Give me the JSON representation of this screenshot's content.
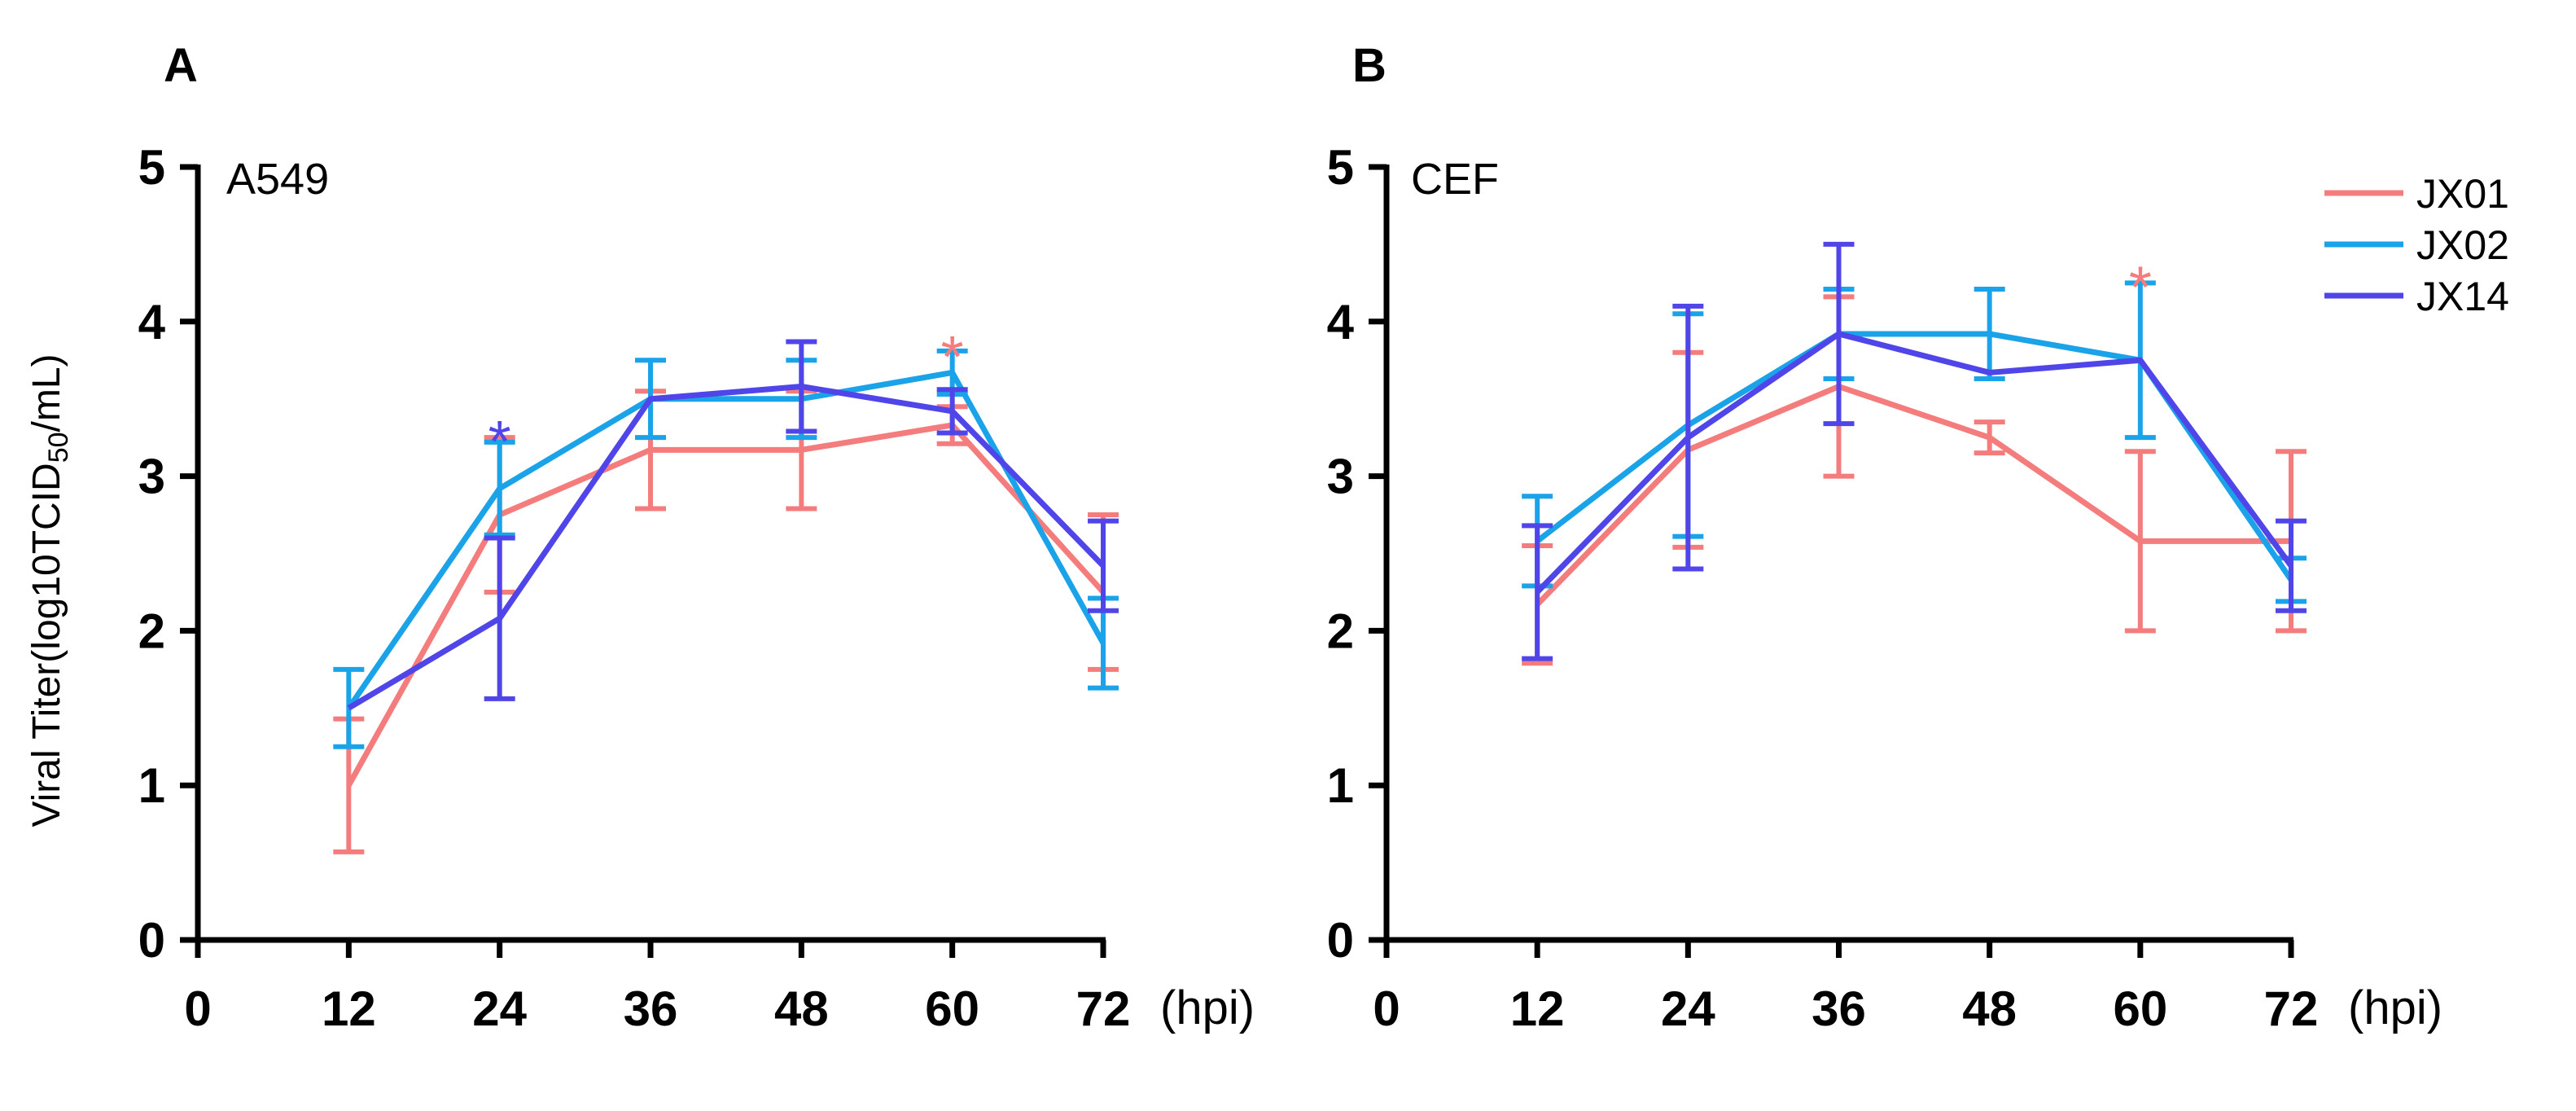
{
  "y_label": {
    "main": "Viral Titer(log10TCID",
    "sub": "50",
    "tail": "/mL)"
  },
  "legend": [
    "JX01",
    "JX02",
    "JX14"
  ],
  "colors": {
    "JX01": "#f47c7c",
    "JX02": "#1aa3e8",
    "JX14": "#5045e8"
  },
  "chart_data": [
    {
      "type": "line",
      "panel_label": "A",
      "cell_label": "A549",
      "x_unit": "(hpi)",
      "x": [
        12,
        24,
        36,
        48,
        60,
        72
      ],
      "x_ticks": [
        0,
        12,
        24,
        36,
        48,
        60,
        72
      ],
      "y_ticks": [
        0,
        1,
        2,
        3,
        4,
        5
      ],
      "xlim": [
        0,
        72
      ],
      "ylim": [
        0,
        5
      ],
      "series": [
        {
          "name": "JX01",
          "values": [
            1.0,
            2.75,
            3.17,
            3.17,
            3.33,
            2.25
          ],
          "errors": [
            0.43,
            0.5,
            0.38,
            0.38,
            0.12,
            0.5
          ]
        },
        {
          "name": "JX02",
          "values": [
            1.5,
            2.92,
            3.5,
            3.5,
            3.67,
            1.92
          ],
          "errors": [
            0.25,
            0.3,
            0.25,
            0.25,
            0.14,
            0.29
          ]
        },
        {
          "name": "JX14",
          "values": [
            1.5,
            2.08,
            3.5,
            3.58,
            3.42,
            2.42
          ],
          "errors": [
            0.0,
            0.52,
            0.0,
            0.29,
            0.14,
            0.29
          ]
        }
      ],
      "annotations": [
        {
          "x": 24,
          "y": 3.25,
          "text": "*",
          "series": "JX14"
        },
        {
          "x": 60,
          "y": 3.8,
          "text": "*",
          "series": "JX01"
        }
      ]
    },
    {
      "type": "line",
      "panel_label": "B",
      "cell_label": "CEF",
      "x_unit": "(hpi)",
      "x": [
        12,
        24,
        36,
        48,
        60,
        72
      ],
      "x_ticks": [
        0,
        12,
        24,
        36,
        48,
        60,
        72
      ],
      "y_ticks": [
        0,
        1,
        2,
        3,
        4,
        5
      ],
      "xlim": [
        0,
        72
      ],
      "ylim": [
        0,
        5
      ],
      "series": [
        {
          "name": "JX01",
          "values": [
            2.17,
            3.17,
            3.58,
            3.25,
            2.58,
            2.58
          ],
          "errors": [
            0.38,
            0.63,
            0.58,
            0.1,
            0.58,
            0.58
          ]
        },
        {
          "name": "JX02",
          "values": [
            2.58,
            3.33,
            3.92,
            3.92,
            3.75,
            2.33
          ],
          "errors": [
            0.29,
            0.72,
            0.29,
            0.29,
            0.5,
            0.14
          ]
        },
        {
          "name": "JX14",
          "values": [
            2.25,
            3.25,
            3.92,
            3.67,
            3.75,
            2.42
          ],
          "errors": [
            0.43,
            0.85,
            0.58,
            0.0,
            0.0,
            0.29
          ]
        }
      ],
      "annotations": [
        {
          "x": 60,
          "y": 4.25,
          "text": "*",
          "series": "JX01"
        }
      ]
    }
  ]
}
